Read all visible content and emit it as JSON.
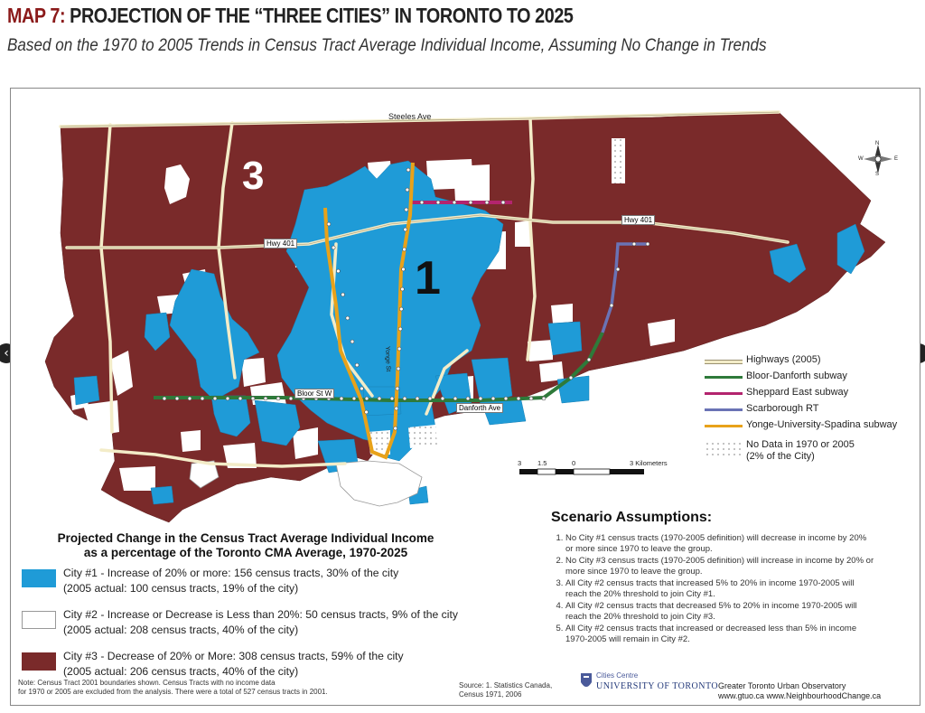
{
  "header": {
    "title_prefix": "MAP 7:",
    "title_rest": " PROJECTION OF THE “THREE CITIES” IN TORONTO TO 2025",
    "subtitle": "Based on the 1970 to 2005 Trends in Census Tract Average Individual Income, Assuming No Change in Trends"
  },
  "nav": {
    "prev": "‹",
    "next": "›"
  },
  "map": {
    "roads": {
      "steeles": "Steeles Ave",
      "hwy401_west": "Hwy 401",
      "hwy401_east": "Hwy 401",
      "bloor": "Bloor St W",
      "danforth": "Danforth Ave",
      "yonge": "Yonge St"
    },
    "city_labels": {
      "city1": "1",
      "city3": "3"
    },
    "compass": {
      "n": "N",
      "s": "S",
      "e": "E",
      "w": "W"
    }
  },
  "scale_bar": {
    "ticks": [
      "3",
      "1.5",
      "0",
      "3 Kilometers"
    ]
  },
  "colors": {
    "city1": "#1f9bd7",
    "city2": "#ffffff",
    "city3": "#7a2a2a",
    "water": "#ffffff",
    "highway": "#f3ecc8",
    "bloor_danforth": "#2e7a3a",
    "sheppard": "#b3246e",
    "scarborough_rt": "#6a73b5",
    "yonge_spadina": "#e8a21a"
  },
  "map_legend": {
    "highways": "Highways (2005)",
    "bloor_danforth": "Bloor-Danforth subway",
    "sheppard": "Sheppard East subway",
    "scarborough_rt": "Scarborough RT",
    "yonge_spadina": "Yonge-University-Spadina subway",
    "no_data_line1": "No Data in 1970 or 2005",
    "no_data_line2": "(2% of the City)"
  },
  "income_legend": {
    "title_line1": "Projected Change in the Census Tract Average Individual Income",
    "title_line2": "as a percentage of the Toronto CMA Average, 1970-2025",
    "items": [
      {
        "line1": "City #1 - Increase of 20% or more: 156 census tracts, 30% of the city",
        "line2": "(2005 actual: 100 census tracts, 19% of the city)"
      },
      {
        "line1": "City #2 - Increase or Decrease is Less than 20%: 50 census tracts, 9% of the city",
        "line2": "(2005 actual: 208 census tracts, 40% of the city)"
      },
      {
        "line1": "City #3 - Decrease of 20% or More: 308 census tracts, 59% of the city",
        "line2": "(2005 actual: 206 census tracts, 40% of the city)"
      }
    ]
  },
  "scenario": {
    "title": "Scenario Assumptions:",
    "items": [
      "No City #1 census tracts (1970-2005 definition) will decrease in income by 20% or more since 1970 to leave the group.",
      "No City #3 census tracts (1970-2005 definition) will increase in income by 20% or more since 1970 to leave the group.",
      "All City #2 census tracts that increased 5% to 20% in income 1970-2005 will reach the 20% threshold to join City #1.",
      "All City #2 census tracts that decreased 5% to 20% in income 1970-2005 will reach the 20% threshold to join City #3.",
      "All City #2 census tracts that increased or decreased less than 5% in income 1970-2005 will remain in City #2."
    ]
  },
  "footer": {
    "note_line1": "Note: Census Tract 2001 boundaries shown. Census Tracts with no income data",
    "note_line2": "for 1970 or 2005 are excluded from the analysis. There were a total of 527 census tracts in 2001.",
    "source_line1": "Source: 1. Statistics Canada,",
    "source_line2": "Census 1971, 2006",
    "uoft_line1": "Cities Centre",
    "uoft_line2": "UNIVERSITY OF TORONTO",
    "gtuo_line1": "Greater Toronto Urban Observatory",
    "gtuo_line2": "www.gtuo.ca   www.NeighbourhoodChange.ca"
  }
}
